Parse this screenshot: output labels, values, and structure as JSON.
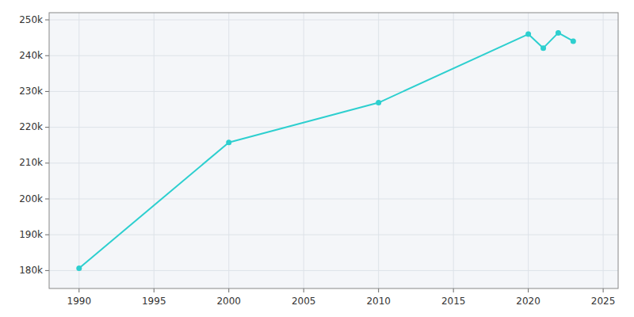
{
  "chart_data": {
    "type": "line",
    "x": [
      1990,
      2000,
      2010,
      2020,
      2021,
      2022,
      2023
    ],
    "values": [
      180650,
      215768,
      226876,
      246018,
      242120,
      246378,
      244046
    ],
    "color": "#2dcfcf",
    "marker": "circle",
    "xlim": [
      1988,
      2026
    ],
    "ylim": [
      175000,
      252000
    ],
    "xticks": [
      1990,
      1995,
      2000,
      2005,
      2010,
      2015,
      2020,
      2025
    ],
    "yticks": [
      {
        "value": 180000,
        "label": "180k"
      },
      {
        "value": 190000,
        "label": "190k"
      },
      {
        "value": 200000,
        "label": "200k"
      },
      {
        "value": 210000,
        "label": "210k"
      },
      {
        "value": 220000,
        "label": "220k"
      },
      {
        "value": 230000,
        "label": "230k"
      },
      {
        "value": 240000,
        "label": "240k"
      },
      {
        "value": 250000,
        "label": "250k"
      }
    ],
    "grid": true
  }
}
